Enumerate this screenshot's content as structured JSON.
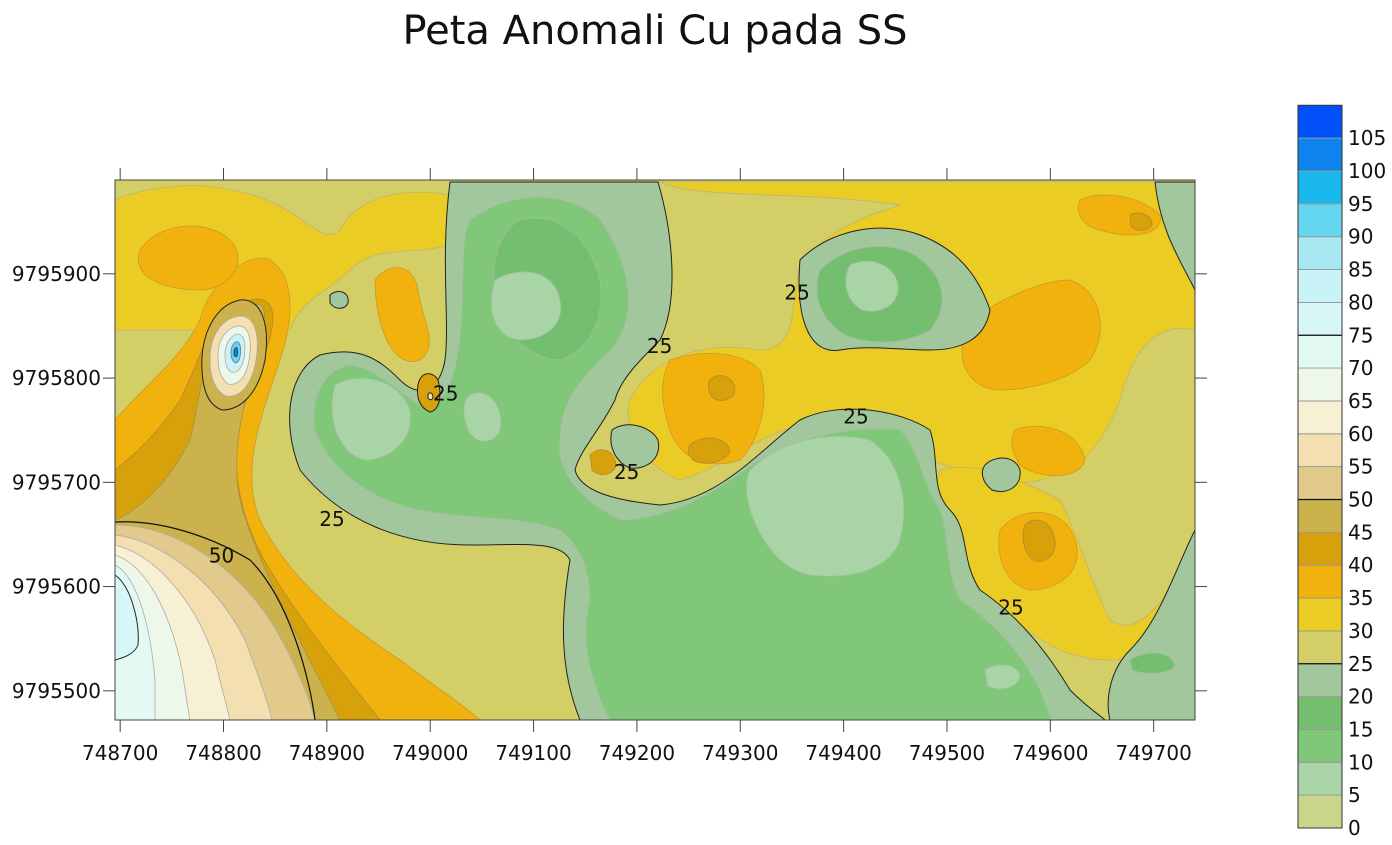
{
  "chart_data": {
    "type": "heatmap",
    "subtype": "filled-contour-map",
    "title": "Peta Anomali Cu pada SS",
    "xlabel": "",
    "ylabel": "",
    "xlim": [
      748695,
      749740
    ],
    "ylim": [
      9795472,
      9795990
    ],
    "x_ticks": [
      748700,
      748800,
      748900,
      749000,
      749100,
      749200,
      749300,
      749400,
      749500,
      749600,
      749700
    ],
    "y_ticks": [
      9795500,
      9795600,
      9795700,
      9795800,
      9795900
    ],
    "contour_labels": [
      {
        "text": "25",
        "x": 749015,
        "y": 9795785
      },
      {
        "text": "25",
        "x": 749222,
        "y": 9795831
      },
      {
        "text": "25",
        "x": 749355,
        "y": 9795882
      },
      {
        "text": "25",
        "x": 749412,
        "y": 9795763
      },
      {
        "text": "25",
        "x": 749190,
        "y": 9795710
      },
      {
        "text": "25",
        "x": 748905,
        "y": 9795665
      },
      {
        "text": "25",
        "x": 749562,
        "y": 9795580
      },
      {
        "text": "50",
        "x": 748798,
        "y": 9795630
      }
    ],
    "legend": {
      "placement": "right",
      "levels": [
        "0",
        "5",
        "10",
        "15",
        "20",
        "25",
        "30",
        "35",
        "40",
        "45",
        "50",
        "55",
        "60",
        "65",
        "70",
        "75",
        "80",
        "85",
        "90",
        "95",
        "100",
        "105"
      ],
      "colors": [
        "#ccd68b",
        "#a8d4a6",
        "#80c779",
        "#74be70",
        "#a3c79d",
        "#d3ce66",
        "#ebcc24",
        "#f2b20d",
        "#d7a10b",
        "#ccb24c",
        "#e2c98c",
        "#f3dfb0",
        "#f8f0d4",
        "#eef8ea",
        "#e3f9f3",
        "#d7f7f7",
        "#c9f3f6",
        "#a7e8f2",
        "#64d6ef",
        "#1ab7ec",
        "#0e85ee",
        "#0251f8"
      ]
    },
    "grid": false
  }
}
